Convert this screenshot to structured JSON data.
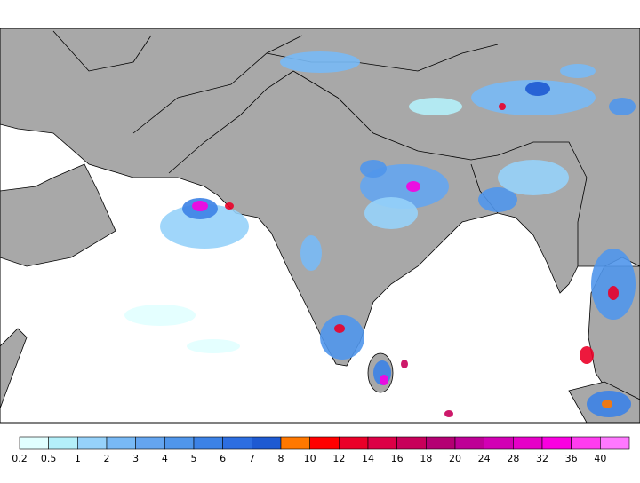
{
  "legend": {
    "levels": [
      0.2,
      0.5,
      1,
      2,
      3,
      4,
      5,
      6,
      7,
      8,
      10,
      12,
      14,
      16,
      18,
      20,
      24,
      28,
      32,
      36,
      40
    ],
    "colors": [
      "#e1ffff",
      "#b4f0fa",
      "#96d2fa",
      "#78b9f5",
      "#64a5f0",
      "#5096eb",
      "#3c82e6",
      "#2d6ee1",
      "#1e5ad2",
      "#ff7800",
      "#ff0000",
      "#eb0028",
      "#dc0046",
      "#c8005a",
      "#b40073",
      "#be0096",
      "#d200b4",
      "#e600c8",
      "#fa00e1",
      "#ff3cf0",
      "#ff78ff"
    ]
  }
}
